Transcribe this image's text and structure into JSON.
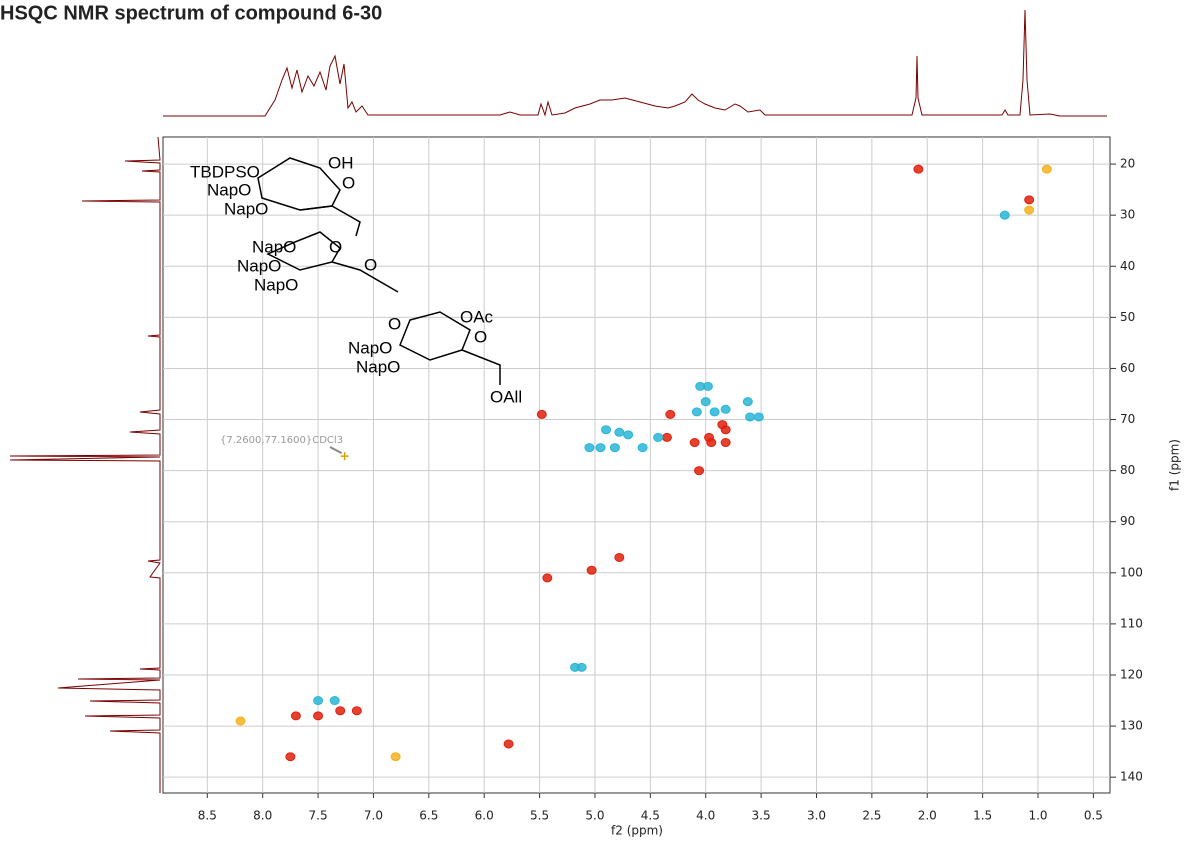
{
  "chart_data": {
    "type": "scatter",
    "title": "HSQC NMR spectrum of compound 6-30",
    "x_label": "f2 (ppm)",
    "y_label": "f1 (ppm)",
    "xlim": [
      8.9,
      0.35
    ],
    "ylim": [
      14.7,
      143.1
    ],
    "xticks": [
      8.5,
      {
        "value": 8,
        "label": "8.0"
      },
      7.5,
      {
        "value": 7,
        "label": "7.0"
      },
      6.5,
      {
        "value": 6,
        "label": "6.0"
      },
      5.5,
      {
        "value": 5,
        "label": "5.0"
      },
      4.5,
      {
        "value": 4,
        "label": "4.0"
      },
      3.5,
      {
        "value": 3,
        "label": "3.0"
      },
      2.5,
      {
        "value": 2,
        "label": "2.0"
      },
      1.5,
      {
        "value": 1,
        "label": "1.0"
      },
      0.5
    ],
    "yticks": [
      20,
      30,
      40,
      50,
      60,
      70,
      80,
      90,
      100,
      110,
      120,
      130,
      140
    ],
    "grid": true,
    "series": [
      {
        "color": "#e0200c",
        "x": [
          2.08,
          1.08,
          5.48,
          4.32,
          4.35,
          4.1,
          3.97,
          3.95,
          3.82,
          3.85,
          3.82,
          4.06,
          5.43,
          5.03,
          4.78,
          5.78,
          7.5,
          7.3,
          7.7,
          7.75,
          7.15
        ],
        "values": [
          21,
          27,
          69,
          69,
          73.5,
          74.5,
          73.5,
          74.5,
          74.5,
          71,
          72,
          80,
          101,
          99.5,
          97,
          133.5,
          128,
          127,
          128,
          136,
          127
        ]
      },
      {
        "color": "#29b6d6",
        "x": [
          1.3,
          4.05,
          3.98,
          4.0,
          3.92,
          4.08,
          3.82,
          3.62,
          3.6,
          3.52,
          4.9,
          4.78,
          4.7,
          4.43,
          4.57,
          4.95,
          5.05,
          4.82,
          5.18,
          5.12,
          7.5,
          7.35
        ],
        "values": [
          30,
          63.5,
          63.5,
          66.5,
          68.5,
          68.5,
          68,
          66.5,
          69.5,
          69.5,
          72,
          72.5,
          73,
          73.5,
          75.5,
          75.5,
          75.5,
          75.5,
          118.5,
          118.5,
          125,
          125
        ]
      },
      {
        "color": "#f5b21e",
        "x": [
          0.92,
          1.08,
          8.2,
          6.8
        ],
        "values": [
          21,
          29,
          129,
          136
        ]
      }
    ],
    "annotation": "{7.2600,77.1600}CDCl3",
    "annotation_point": {
      "x": 7.26,
      "y": 77.16
    },
    "structure_labels": [
      "TBDPSO",
      "OH",
      "O",
      "NapO",
      "NapO",
      "NapO",
      "O",
      "NapO",
      "O",
      "NapO",
      "O",
      "OAc",
      "O",
      "NapO",
      "NapO",
      "OAll"
    ]
  }
}
